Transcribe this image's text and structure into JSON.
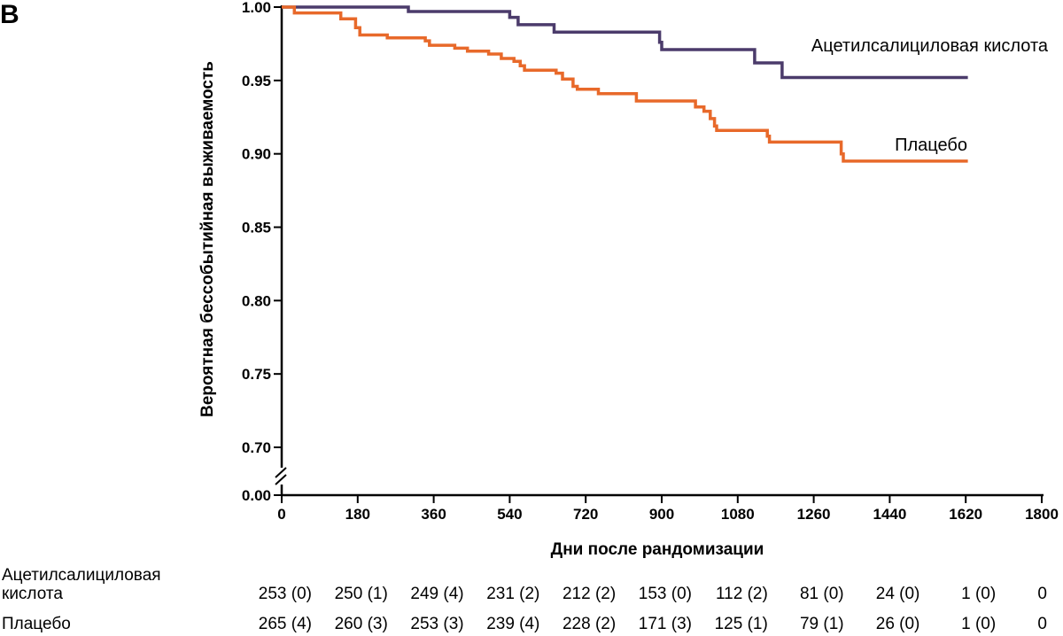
{
  "chart_data": {
    "type": "line",
    "panel_label": "B",
    "ylabel": "Вероятная бессобытийная выживаемость",
    "xlabel": "Дни после рандомизации",
    "xlim": [
      0,
      1800
    ],
    "ylim": [
      0.7,
      1.0
    ],
    "y_break_label": "0.00",
    "x_ticks": [
      0,
      180,
      360,
      540,
      720,
      900,
      1080,
      1260,
      1440,
      1620,
      1800
    ],
    "y_ticks": [
      0.7,
      0.75,
      0.8,
      0.85,
      0.9,
      0.95,
      1.0
    ],
    "y_tick_labels": [
      "0.70",
      "0.75",
      "0.80",
      "0.85",
      "0.90",
      "0.95",
      "1.00"
    ],
    "series": [
      {
        "name": "Ацетилсалициловая кислота",
        "color": "#4b3b6b",
        "steps": [
          [
            0,
            1.0
          ],
          [
            300,
            0.997
          ],
          [
            540,
            0.993
          ],
          [
            560,
            0.988
          ],
          [
            645,
            0.983
          ],
          [
            895,
            0.976
          ],
          [
            900,
            0.971
          ],
          [
            1120,
            0.962
          ],
          [
            1185,
            0.952
          ],
          [
            1625,
            0.952
          ]
        ]
      },
      {
        "name": "Плацебо",
        "color": "#e8692a",
        "steps": [
          [
            0,
            1.0
          ],
          [
            30,
            0.996
          ],
          [
            140,
            0.992
          ],
          [
            175,
            0.986
          ],
          [
            185,
            0.981
          ],
          [
            250,
            0.979
          ],
          [
            340,
            0.977
          ],
          [
            350,
            0.974
          ],
          [
            410,
            0.972
          ],
          [
            440,
            0.97
          ],
          [
            490,
            0.968
          ],
          [
            520,
            0.965
          ],
          [
            550,
            0.963
          ],
          [
            565,
            0.96
          ],
          [
            575,
            0.957
          ],
          [
            650,
            0.955
          ],
          [
            665,
            0.951
          ],
          [
            690,
            0.946
          ],
          [
            700,
            0.944
          ],
          [
            750,
            0.941
          ],
          [
            840,
            0.936
          ],
          [
            980,
            0.932
          ],
          [
            1000,
            0.929
          ],
          [
            1015,
            0.924
          ],
          [
            1025,
            0.919
          ],
          [
            1030,
            0.916
          ],
          [
            1150,
            0.912
          ],
          [
            1155,
            0.908
          ],
          [
            1325,
            0.9
          ],
          [
            1330,
            0.895
          ],
          [
            1625,
            0.895
          ]
        ]
      }
    ],
    "risk_table": {
      "rows": [
        {
          "label_line1": "Ацетилсалициловая",
          "label_line2": "кислота",
          "values": [
            "253 (0)",
            "250 (1)",
            "249 (4)",
            "231 (2)",
            "212 (2)",
            "153 (0)",
            "112 (2)",
            "81 (0)",
            "24 (0)",
            "1 (0)",
            "0"
          ]
        },
        {
          "label_line1": "Плацебо",
          "label_line2": "",
          "values": [
            "265 (4)",
            "260 (3)",
            "253 (3)",
            "239 (4)",
            "228 (2)",
            "171 (3)",
            "125 (1)",
            "79 (1)",
            "26 (0)",
            "1 (0)",
            "0"
          ]
        }
      ]
    }
  }
}
